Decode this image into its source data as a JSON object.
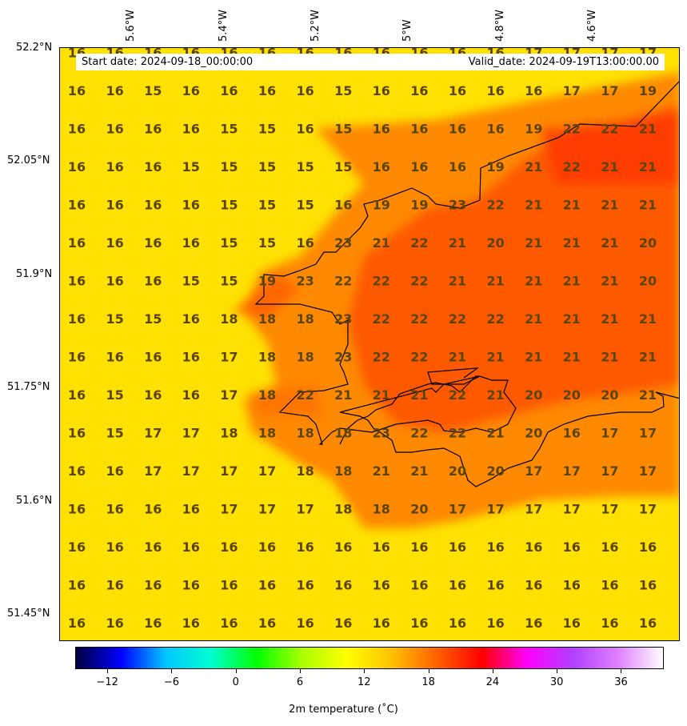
{
  "map": {
    "start_date": "Start date: 2024-09-18_00:00:00",
    "valid_date": "Valid_date: 2024-09-19T13:00:00.00",
    "lat_labels": [
      "52.2°N",
      "52.05°N",
      "51.9°N",
      "51.75°N",
      "51.6°N",
      "51.45°N"
    ],
    "lon_labels": [
      "5.6°W",
      "5.4°W",
      "5.2°W",
      "5°W",
      "4.8°W",
      "4.6°W"
    ],
    "colors": {
      "background": "#ffe100",
      "warm": "#ff6a00",
      "hot": "#ff3c00",
      "coast": "#000000",
      "label": "#5a4500"
    },
    "grid_values": [
      [
        "16",
        "16",
        "16",
        "16",
        "16",
        "16",
        "16",
        "16",
        "16",
        "16",
        "16",
        "16",
        "17",
        "17",
        "17",
        "17"
      ],
      [
        "16",
        "16",
        "15",
        "16",
        "16",
        "16",
        "16",
        "15",
        "16",
        "16",
        "16",
        "16",
        "16",
        "17",
        "17",
        "19"
      ],
      [
        "16",
        "16",
        "16",
        "16",
        "15",
        "15",
        "16",
        "15",
        "16",
        "16",
        "16",
        "16",
        "19",
        "22",
        "22",
        "21"
      ],
      [
        "16",
        "16",
        "16",
        "15",
        "15",
        "15",
        "15",
        "15",
        "16",
        "16",
        "16",
        "19",
        "21",
        "22",
        "21",
        "21"
      ],
      [
        "16",
        "16",
        "16",
        "16",
        "15",
        "15",
        "15",
        "16",
        "19",
        "19",
        "23",
        "22",
        "21",
        "21",
        "21",
        "21"
      ],
      [
        "16",
        "16",
        "16",
        "16",
        "15",
        "15",
        "16",
        "23",
        "21",
        "22",
        "21",
        "20",
        "21",
        "21",
        "21",
        "20"
      ],
      [
        "16",
        "16",
        "16",
        "15",
        "15",
        "19",
        "23",
        "22",
        "22",
        "22",
        "21",
        "21",
        "21",
        "21",
        "21",
        "20"
      ],
      [
        "16",
        "15",
        "15",
        "16",
        "18",
        "18",
        "18",
        "23",
        "22",
        "22",
        "22",
        "22",
        "21",
        "21",
        "21",
        "21"
      ],
      [
        "16",
        "16",
        "16",
        "16",
        "17",
        "18",
        "18",
        "23",
        "22",
        "22",
        "21",
        "21",
        "21",
        "21",
        "21",
        "21"
      ],
      [
        "16",
        "15",
        "16",
        "16",
        "17",
        "18",
        "22",
        "21",
        "21",
        "21",
        "22",
        "21",
        "20",
        "20",
        "20",
        "21"
      ],
      [
        "16",
        "15",
        "17",
        "17",
        "18",
        "18",
        "18",
        "18",
        "23",
        "22",
        "22",
        "21",
        "20",
        "16",
        "17",
        "17"
      ],
      [
        "16",
        "16",
        "17",
        "17",
        "17",
        "17",
        "18",
        "18",
        "21",
        "21",
        "20",
        "20",
        "17",
        "17",
        "17",
        "17"
      ],
      [
        "16",
        "16",
        "16",
        "16",
        "17",
        "17",
        "17",
        "18",
        "18",
        "20",
        "17",
        "17",
        "17",
        "17",
        "17",
        "17"
      ],
      [
        "16",
        "16",
        "16",
        "16",
        "16",
        "16",
        "16",
        "16",
        "16",
        "16",
        "16",
        "16",
        "16",
        "16",
        "16",
        "16"
      ],
      [
        "16",
        "16",
        "16",
        "16",
        "16",
        "16",
        "16",
        "16",
        "16",
        "16",
        "16",
        "16",
        "16",
        "16",
        "16",
        "16"
      ],
      [
        "16",
        "16",
        "16",
        "16",
        "16",
        "16",
        "16",
        "16",
        "16",
        "16",
        "16",
        "16",
        "16",
        "16",
        "16",
        "16"
      ]
    ]
  },
  "colorbar": {
    "ticks": [
      "−12",
      "−6",
      "0",
      "6",
      "12",
      "18",
      "24",
      "30",
      "36"
    ],
    "tick_values": [
      -12,
      -6,
      0,
      6,
      12,
      18,
      24,
      30,
      36
    ],
    "range": [
      -15,
      40
    ],
    "label": "2m temperature ($^\\circ$C)",
    "label_display": "2m temperature (˚C)",
    "stops": [
      "#000040",
      "#0000ff",
      "#00c8ff",
      "#00ffd0",
      "#00ff00",
      "#aaff00",
      "#ffff00",
      "#ffc000",
      "#ff6000",
      "#ff0000",
      "#ff00ff",
      "#b040ff",
      "#e080ff",
      "#ffffff"
    ]
  }
}
